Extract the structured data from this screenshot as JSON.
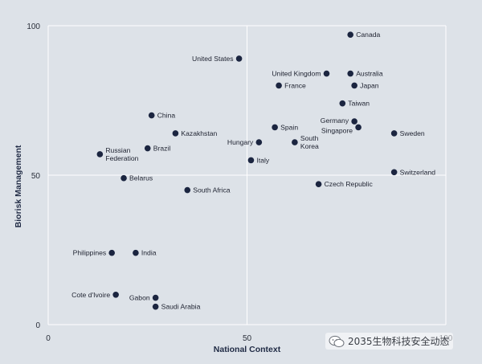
{
  "chart_data": {
    "type": "scatter",
    "xlabel": "National Context",
    "ylabel": "Biorisk Management",
    "xlim": [
      0,
      100
    ],
    "ylim": [
      0,
      100
    ],
    "x_ticks": [
      "0",
      "50",
      "100"
    ],
    "y_ticks": [
      "0",
      "50",
      "100"
    ],
    "grid": "center cross lines at 50",
    "point_color": "#1b2540",
    "points": [
      {
        "name": "Canada",
        "x": 76,
        "y": 97
      },
      {
        "name": "United States",
        "x": 48,
        "y": 89
      },
      {
        "name": "United Kingdom",
        "x": 70,
        "y": 84
      },
      {
        "name": "Australia",
        "x": 76,
        "y": 84
      },
      {
        "name": "France",
        "x": 58,
        "y": 80
      },
      {
        "name": "Japan",
        "x": 77,
        "y": 80
      },
      {
        "name": "Taiwan",
        "x": 74,
        "y": 74
      },
      {
        "name": "China",
        "x": 26,
        "y": 70
      },
      {
        "name": "Germany",
        "x": 77,
        "y": 68
      },
      {
        "name": "Singapore",
        "x": 78,
        "y": 66
      },
      {
        "name": "Spain",
        "x": 57,
        "y": 66
      },
      {
        "name": "Sweden",
        "x": 87,
        "y": 64
      },
      {
        "name": "Kazakhstan",
        "x": 32,
        "y": 64
      },
      {
        "name": "Hungary",
        "x": 53,
        "y": 61
      },
      {
        "name": "South Korea",
        "x": 62,
        "y": 61
      },
      {
        "name": "Brazil",
        "x": 25,
        "y": 59
      },
      {
        "name": "Russian Federation",
        "x": 13,
        "y": 57
      },
      {
        "name": "Italy",
        "x": 51,
        "y": 55
      },
      {
        "name": "Switzerland",
        "x": 87,
        "y": 51
      },
      {
        "name": "Belarus",
        "x": 19,
        "y": 49
      },
      {
        "name": "Czech Republic",
        "x": 68,
        "y": 47
      },
      {
        "name": "South Africa",
        "x": 35,
        "y": 45
      },
      {
        "name": "Philippines",
        "x": 16,
        "y": 24
      },
      {
        "name": "India",
        "x": 22,
        "y": 24
      },
      {
        "name": "Cote d'Ivoire",
        "x": 17,
        "y": 10
      },
      {
        "name": "Gabon",
        "x": 27,
        "y": 9
      },
      {
        "name": "Saudi Arabia",
        "x": 27,
        "y": 6
      }
    ]
  },
  "watermark": {
    "text": "2035生物科技安全动态"
  }
}
